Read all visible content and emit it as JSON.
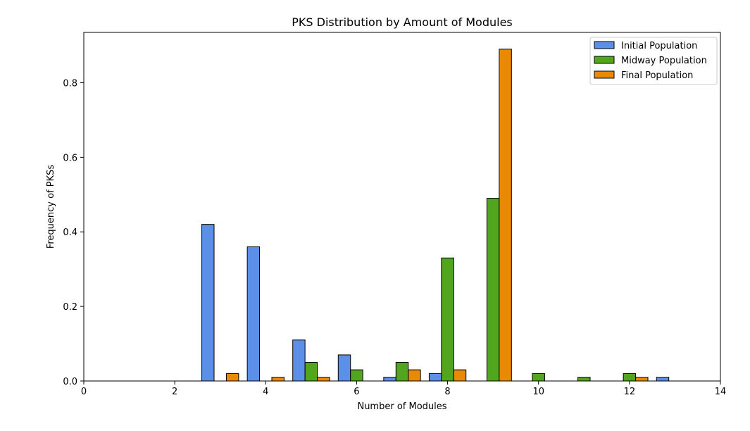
{
  "chart_data": {
    "type": "bar",
    "title": "PKS Distribution by Amount of Modules",
    "xlabel": "Number of Modules",
    "ylabel": "Frequency of PKSs",
    "xlim": [
      0,
      14
    ],
    "ylim": [
      0,
      0.935
    ],
    "xticks": [
      0,
      2,
      4,
      6,
      8,
      10,
      12,
      14
    ],
    "xtick_labels": [
      "0",
      "2",
      "4",
      "6",
      "8",
      "10",
      "12",
      "14"
    ],
    "yticks": [
      0.0,
      0.2,
      0.4,
      0.6,
      0.8
    ],
    "ytick_labels": [
      "0.0",
      "0.2",
      "0.4",
      "0.6",
      "0.8"
    ],
    "grid": false,
    "legend_position": "top-right",
    "x": [
      1,
      2,
      3,
      4,
      5,
      6,
      7,
      8,
      9,
      10,
      11,
      12,
      13
    ],
    "series": [
      {
        "name": "Initial Population",
        "color": "#5b8fe8",
        "values": [
          0,
          0,
          0.42,
          0.36,
          0.11,
          0.07,
          0.01,
          0.02,
          0,
          0,
          0,
          0,
          0.01
        ]
      },
      {
        "name": "Midway Population",
        "color": "#52a61e",
        "values": [
          0,
          0,
          0,
          0,
          0.05,
          0.03,
          0.05,
          0.33,
          0.49,
          0.02,
          0.01,
          0.02,
          0
        ]
      },
      {
        "name": "Final Population",
        "color": "#e88a06",
        "values": [
          0,
          0,
          0.02,
          0.01,
          0.01,
          0,
          0.03,
          0.03,
          0.89,
          0,
          0,
          0.01,
          0
        ]
      }
    ]
  }
}
